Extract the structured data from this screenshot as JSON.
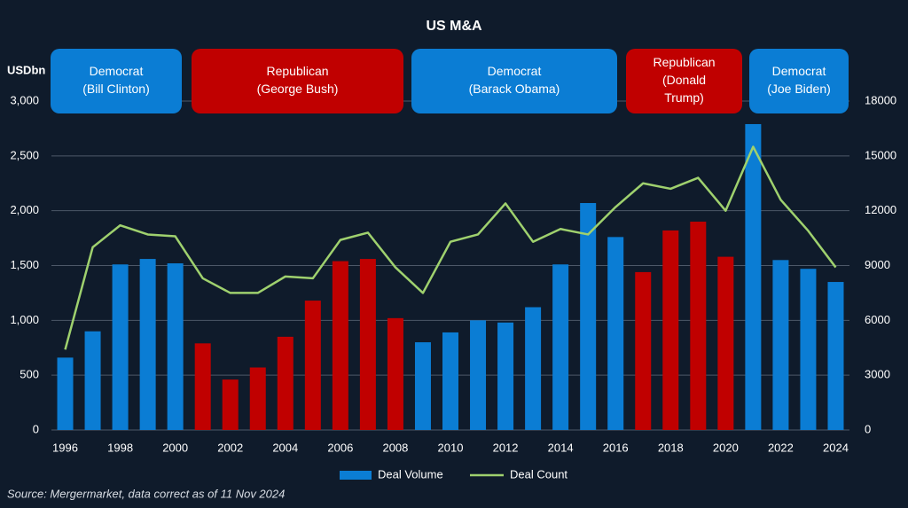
{
  "chart_data": {
    "type": "bar",
    "title": "US M&A",
    "y_label": "USDbn",
    "source": "Source: Mergermarket, data correct as of 11 Nov 2024",
    "categories": [
      "1996",
      null,
      "1998",
      null,
      "2000",
      null,
      "2002",
      null,
      "2004",
      null,
      "2006",
      null,
      "2008",
      null,
      "2010",
      null,
      "2012",
      null,
      "2014",
      null,
      "2016",
      null,
      "2018",
      null,
      "2020",
      null,
      "2022",
      null,
      "2024"
    ],
    "series": [
      {
        "name": "Deal Volume",
        "type": "bar",
        "color": "#0b7dd4",
        "colors": [
          "#0b7dd4",
          "#0b7dd4",
          "#0b7dd4",
          "#0b7dd4",
          "#0b7dd4",
          "#c00000",
          "#c00000",
          "#c00000",
          "#c00000",
          "#c00000",
          "#c00000",
          "#c00000",
          "#c00000",
          "#0b7dd4",
          "#0b7dd4",
          "#0b7dd4",
          "#0b7dd4",
          "#0b7dd4",
          "#0b7dd4",
          "#0b7dd4",
          "#0b7dd4",
          "#c00000",
          "#c00000",
          "#c00000",
          "#c00000",
          "#0b7dd4",
          "#0b7dd4",
          "#0b7dd4",
          "#0b7dd4"
        ],
        "values": [
          660,
          900,
          1510,
          1560,
          1520,
          790,
          460,
          570,
          850,
          1180,
          1540,
          1560,
          1020,
          800,
          890,
          1000,
          980,
          1120,
          1510,
          2070,
          1760,
          1440,
          1820,
          1900,
          1580,
          2790,
          1550,
          1470,
          1350
        ]
      },
      {
        "name": "Deal Count",
        "type": "line",
        "axis": "y2",
        "color": "#9fd16e",
        "values": [
          4400,
          10000,
          11200,
          10700,
          10600,
          8300,
          7500,
          7500,
          8400,
          8300,
          10400,
          10800,
          8900,
          7500,
          10300,
          10700,
          12400,
          10300,
          11000,
          10700,
          12200,
          13500,
          13200,
          13800,
          12000,
          15500,
          12600,
          10900,
          8900
        ]
      }
    ],
    "ylim": [
      0,
      3000
    ],
    "yticks": [
      0,
      500,
      {
        "value": 1000,
        "label": "1,000"
      },
      {
        "value": 1500,
        "label": "1,500"
      },
      {
        "value": 2000,
        "label": "2,000"
      },
      {
        "value": 2500,
        "label": "2,500"
      },
      {
        "value": 3000,
        "label": "3,000"
      }
    ],
    "y2lim": [
      0,
      18000
    ],
    "y2ticks": [
      0,
      3000,
      6000,
      9000,
      12000,
      15000,
      18000
    ],
    "grid": true,
    "legend": "bottom",
    "eras": [
      {
        "lines": [
          "Democrat",
          "(Bill Clinton)"
        ],
        "color": "#0b7dd4"
      },
      {
        "lines": [
          "Republican",
          "(George Bush)"
        ],
        "color": "#c00000"
      },
      {
        "lines": [
          "Democrat",
          "(Barack Obama)"
        ],
        "color": "#0b7dd4"
      },
      {
        "lines": [
          "Republican",
          "(Donald",
          "Trump)"
        ],
        "color": "#c00000"
      },
      {
        "lines": [
          "Democrat",
          "(Joe Biden)"
        ],
        "color": "#0b7dd4"
      }
    ]
  }
}
